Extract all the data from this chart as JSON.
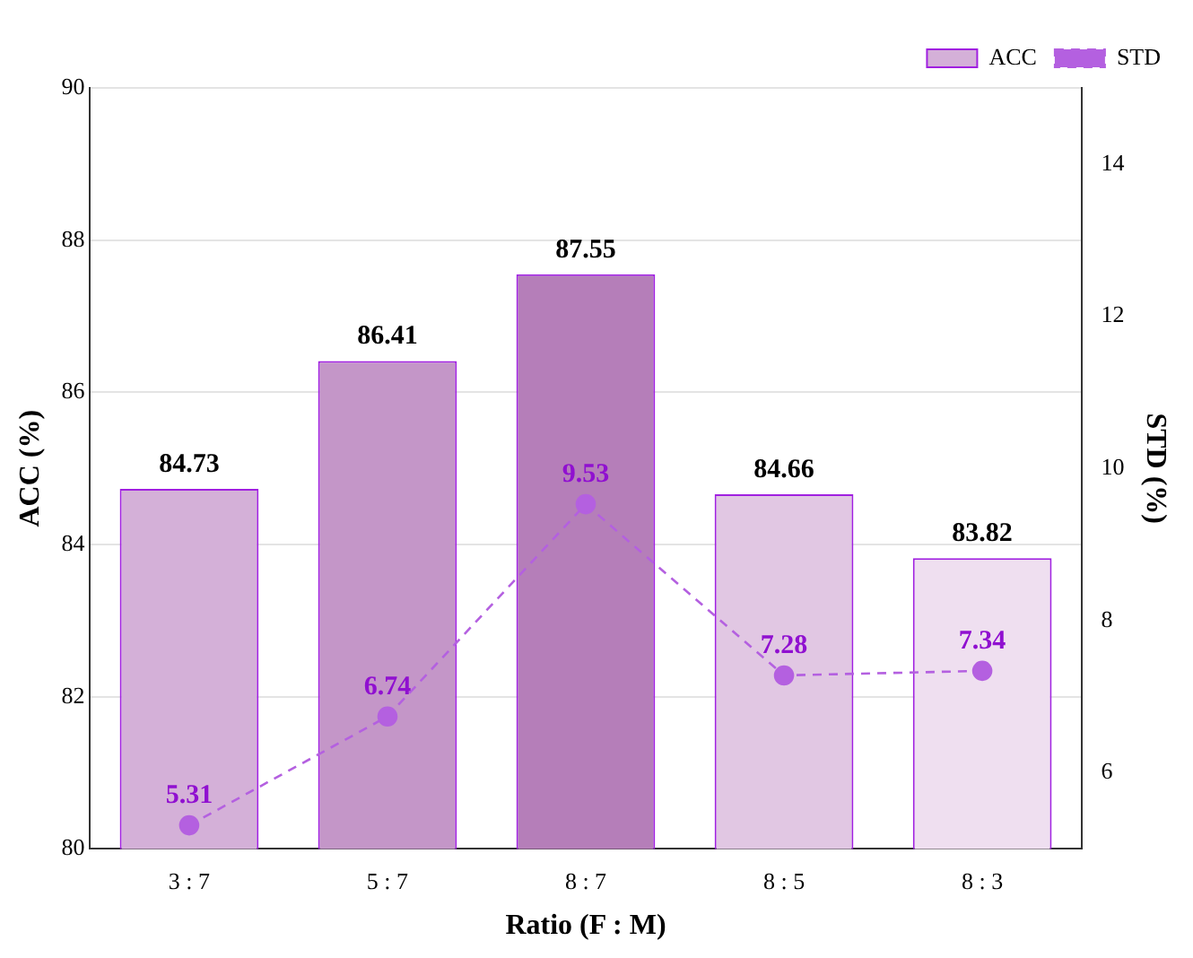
{
  "chart_data": {
    "type": "bar",
    "xlabel": "Ratio (F : M)",
    "ylabel": "ACC (%)",
    "y2label": "STD (%)",
    "categories": [
      "3 : 7",
      "5 : 7",
      "8 : 7",
      "8 : 5",
      "8 : 3"
    ],
    "series": [
      {
        "name": "ACC",
        "color": "#d4b0d8",
        "colors": [
          "#d4b0d8",
          "#c496c8",
          "#b57eb9",
          "#e1c7e3",
          "#efdff0"
        ],
        "values": [
          84.73,
          86.41,
          87.55,
          84.66,
          83.82
        ]
      },
      {
        "name": "STD",
        "type": "line",
        "axis": "y2",
        "color": "#b460e0",
        "marker": "circle",
        "line_style": "dashed",
        "values": [
          5.31,
          6.74,
          9.53,
          7.28,
          7.34
        ]
      }
    ],
    "ylim": [
      80,
      90
    ],
    "yticks": [
      80,
      82,
      84,
      86,
      88,
      90
    ],
    "y2lim": [
      5,
      15
    ],
    "y2ticks": [
      6,
      8,
      10,
      12,
      14
    ],
    "grid": "y",
    "legend": "top right",
    "data_labels": true
  }
}
